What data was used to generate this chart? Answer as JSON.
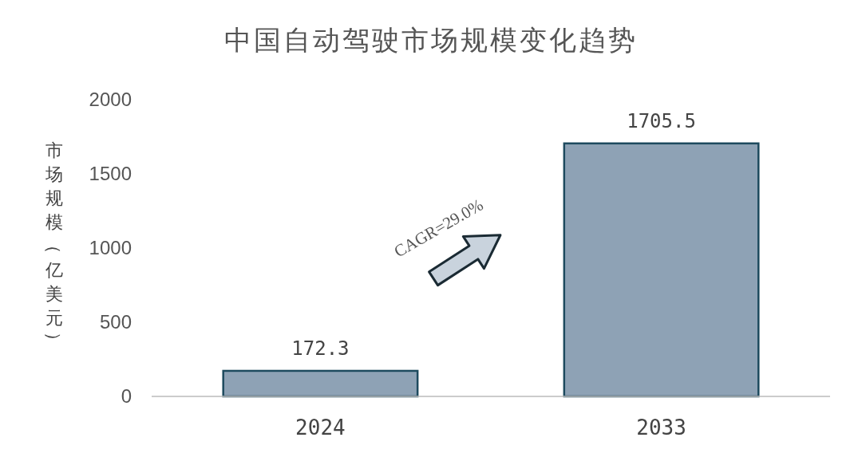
{
  "chart_data": {
    "type": "bar",
    "title": "中国自动驾驶市场规模变化趋势",
    "ylabel": "市场规模（亿美元）",
    "categories": [
      "2024",
      "2033"
    ],
    "values": [
      172.3,
      1705.5
    ],
    "color": "#8ea2b5",
    "ylim": [
      0,
      2000
    ],
    "yticks": [
      0,
      500,
      1000,
      1500,
      2000
    ],
    "grid": false,
    "data_labels": true,
    "annotations": [
      "CAGR=29.0%"
    ]
  }
}
